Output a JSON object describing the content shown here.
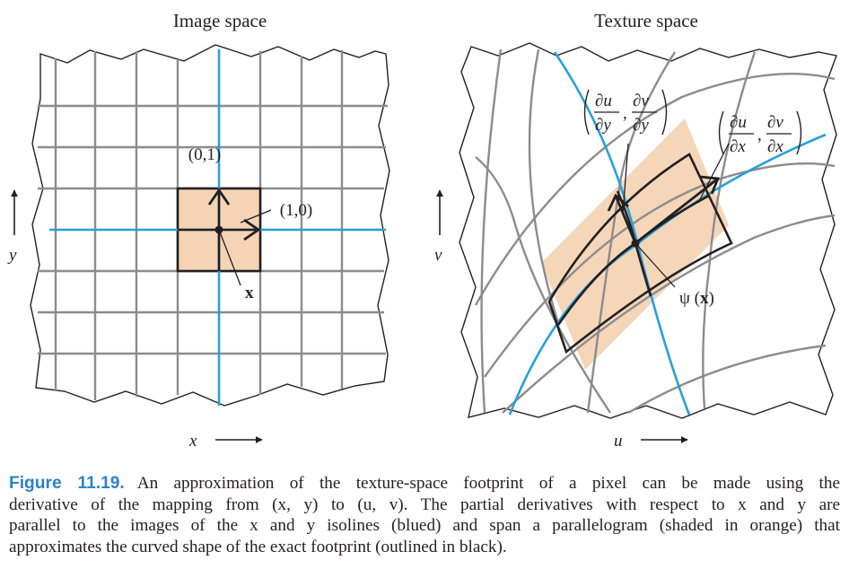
{
  "panels": {
    "left_title": "Image space",
    "right_title": "Texture space"
  },
  "labels": {
    "left_axis_y": "y",
    "left_axis_x": "x",
    "right_axis_v": "v",
    "right_axis_u": "u",
    "vec_01": "(0,1)",
    "vec_10": "(1,0)",
    "point_x": "x",
    "psi": "ψ (",
    "psi_var": "x",
    "psi_close": ")",
    "du": "∂u",
    "dv": "∂v",
    "dy": "∂y",
    "dx": "∂x"
  },
  "colors": {
    "grid": "#8c8c8c",
    "isoline": "#2a9fd8",
    "footprint_fill": "#f4d4b5",
    "outline": "#231f20",
    "caption_label": "#2f82c4"
  },
  "caption": {
    "label": "Figure 11.19.",
    "line1": "An approximation of the texture-space footprint of a pixel can be made using the",
    "line2": "derivative of the mapping from (x, y) to (u, v). The partial derivatives with respect to x and y are",
    "line3": "parallel to the images of the x and y isolines (blued) and span a parallelogram (shaded in orange) that",
    "line4": "approximates the curved shape of the exact footprint (outlined in black)."
  }
}
